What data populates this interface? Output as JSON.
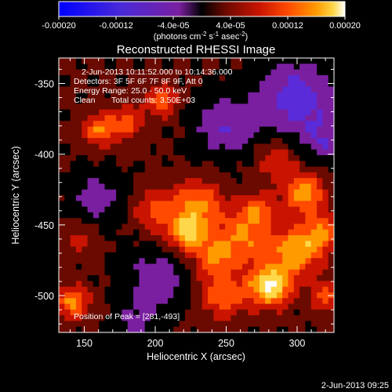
{
  "colorbar": {
    "ticks": [
      "-0.00020",
      "-0.00012",
      "-4.0e-05",
      "4.0e-05",
      "0.00012",
      "0.00020"
    ],
    "units_main": "(photons cm",
    "units_sup1": "-2",
    "units_mid": " s",
    "units_sup2": "-1",
    "units_end": " asec",
    "units_sup3": "-2",
    "units_close": ")"
  },
  "title": "Reconstructed RHESSI Image",
  "annotations": {
    "time_range": "2-Jun-2013 10:11:52.000 to 10:14:36.000",
    "detectors": "Detectors: 3F 5F 6F 7F 8F 9F, Att 0",
    "energy_range": "Energy Range: 25.0 - 50.0 keV",
    "algorithm": "Clean",
    "total_counts": "Total counts: 3.50E+03",
    "peak": "Position of Peak = [281,-493]"
  },
  "axes": {
    "xlabel": "Heliocentric X (arcsec)",
    "ylabel": "Heliocentric Y (arcsec)",
    "xticks": [
      "150",
      "200",
      "250",
      "300"
    ],
    "yticks": [
      "-350",
      "-400",
      "-450",
      "-500"
    ]
  },
  "timestamp": "2-Jun-2013 09:25",
  "image_extent": {
    "x_range_arcsec": [
      132,
      326
    ],
    "y_range_arcsec": [
      -526,
      -332
    ]
  },
  "colormap": [
    "#0000ff",
    "#5a2bd8",
    "#7a1fa0",
    "#000000",
    "#6a0a00",
    "#c81400",
    "#ff4a00",
    "#ff9a00",
    "#ffd84a",
    "#ffffff"
  ],
  "peak_position_arcsec": [
    281,
    -493
  ]
}
